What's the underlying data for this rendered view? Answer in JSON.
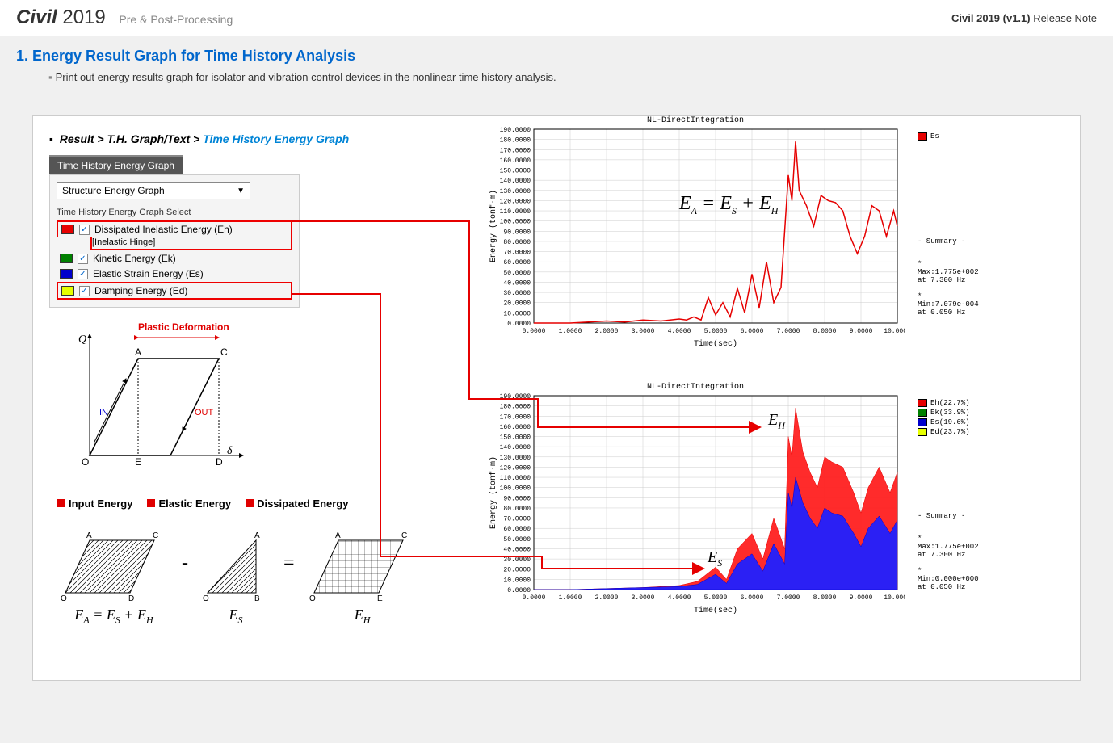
{
  "header": {
    "product_bold": "Civil",
    "product_year": "2019",
    "subtitle": "Pre & Post-Processing",
    "right_bold": "Civil 2019 (v1.1)",
    "right_text": " Release Note"
  },
  "section": {
    "number": "1.",
    "title": "Energy Result Graph for Time History Analysis",
    "description": "Print out  energy results graph for isolator and vibration control devices in the nonlinear time history analysis."
  },
  "breadcrumb": {
    "a": "Result",
    "b": "T.H. Graph/Text",
    "c": "Time History Energy Graph",
    "sep": " > "
  },
  "props": {
    "tab": "Time History Energy Graph",
    "dropdown": "Structure Energy Graph",
    "group": "Time History Energy Graph Select",
    "items": [
      {
        "label": "Dissipated Inelastic Energy (Eh)",
        "sub": "[Inelastic Hinge]",
        "color": "#e60000",
        "highlight": true
      },
      {
        "label": "Kinetic Energy (Ek)",
        "sub": "",
        "color": "#008000",
        "highlight": false
      },
      {
        "label": "Elastic Strain Energy (Es)",
        "sub": "",
        "color": "#0000cc",
        "highlight": false
      },
      {
        "label": "Damping Energy (Ed)",
        "sub": "",
        "color": "#e6ff00",
        "highlight": true
      }
    ]
  },
  "diagram": {
    "plastic": "Plastic Deformation",
    "Q": "Q",
    "A": "A",
    "C": "C",
    "O": "O",
    "E": "E",
    "D": "D",
    "IN": "IN",
    "OUT": "OUT",
    "delta": "δ"
  },
  "energy_types": {
    "input": "Input Energy",
    "elastic": "Elastic Energy",
    "dissipated": "Dissipated Energy"
  },
  "equations": {
    "ea_eq": "E",
    "a_sub": "A",
    "eq": " = ",
    "es": "E",
    "s_sub": "S",
    "plus": " + ",
    "eh": "E",
    "h_sub": "H",
    "minus": "-",
    "equals": "="
  },
  "chart1": {
    "title": "NL-DirectIntegration",
    "xlabel": "Time(sec)",
    "ylabel": "Energy (tonf·m)",
    "ylim": [
      0,
      190
    ],
    "ytick_step": 10,
    "xlim": [
      0,
      10
    ],
    "xtick_step": 1,
    "background": "#ffffff",
    "grid_color": "#cccccc",
    "line_color": "#e60000",
    "line_width": 1.5,
    "data_x": [
      0,
      0.5,
      1,
      1.5,
      2,
      2.5,
      3,
      3.5,
      4,
      4.2,
      4.4,
      4.6,
      4.8,
      5,
      5.2,
      5.4,
      5.6,
      5.8,
      6,
      6.2,
      6.4,
      6.6,
      6.8,
      7,
      7.1,
      7.2,
      7.3,
      7.5,
      7.7,
      7.9,
      8.1,
      8.3,
      8.5,
      8.7,
      8.9,
      9.1,
      9.3,
      9.5,
      9.7,
      9.9,
      10
    ],
    "data_y": [
      0,
      0,
      0,
      1,
      2,
      1,
      3,
      2,
      4,
      3,
      6,
      3,
      25,
      8,
      20,
      6,
      34,
      10,
      48,
      15,
      60,
      20,
      35,
      145,
      120,
      178,
      130,
      115,
      95,
      125,
      120,
      118,
      110,
      85,
      68,
      85,
      115,
      110,
      85,
      110,
      95
    ],
    "legend": [
      {
        "label": "Es",
        "color": "#e60000"
      }
    ],
    "summary_title": "- Summary -",
    "summary_lines": [
      "*",
      "Max:1.775e+002",
      "at  7.300 Hz",
      "",
      "*",
      "Min:7.079e-004",
      "at  0.050 Hz"
    ]
  },
  "chart2": {
    "title": "NL-DirectIntegration",
    "xlabel": "Time(sec)",
    "ylabel": "Energy (tonf·m)",
    "ylim": [
      0,
      190
    ],
    "ytick_step": 10,
    "xlim": [
      0,
      10
    ],
    "xtick_step": 1,
    "background": "#ffffff",
    "grid_color": "#cccccc",
    "series": [
      {
        "name": "Eh",
        "color": "#e60000",
        "fill": "#ff2020",
        "x": [
          0,
          1,
          2,
          3,
          4,
          4.5,
          5,
          5.3,
          5.6,
          6,
          6.3,
          6.6,
          6.9,
          7,
          7.1,
          7.2,
          7.4,
          7.6,
          7.8,
          8,
          8.2,
          8.5,
          8.8,
          9,
          9.2,
          9.5,
          9.8,
          10
        ],
        "y": [
          0,
          0,
          1,
          2,
          4,
          8,
          22,
          10,
          40,
          55,
          30,
          70,
          40,
          150,
          130,
          178,
          135,
          115,
          100,
          130,
          125,
          120,
          95,
          75,
          100,
          120,
          95,
          115
        ]
      },
      {
        "name": "Es",
        "color": "#0000cc",
        "fill": "#2020ff",
        "x": [
          0,
          1,
          2,
          3,
          4,
          4.5,
          5,
          5.3,
          5.6,
          6,
          6.3,
          6.6,
          6.9,
          7,
          7.1,
          7.2,
          7.4,
          7.6,
          7.8,
          8,
          8.2,
          8.5,
          8.8,
          9,
          9.2,
          9.5,
          9.8,
          10
        ],
        "y": [
          0,
          0,
          1,
          2,
          3,
          5,
          15,
          6,
          25,
          35,
          18,
          45,
          25,
          95,
          80,
          110,
          85,
          70,
          60,
          80,
          75,
          72,
          55,
          42,
          60,
          72,
          55,
          68
        ]
      }
    ],
    "legend": [
      {
        "label": "Eh(22.7%)",
        "color": "#e60000"
      },
      {
        "label": "Ek(33.9%)",
        "color": "#008000"
      },
      {
        "label": "Es(19.6%)",
        "color": "#0000cc"
      },
      {
        "label": "Ed(23.7%)",
        "color": "#e6ff00"
      }
    ],
    "summary_title": "- Summary -",
    "summary_lines": [
      "*",
      "Max:1.775e+002",
      "at  7.300 Hz",
      "",
      "*",
      "Min:0.000e+000",
      "at  0.050 Hz"
    ],
    "label_eh": "E",
    "label_eh_sub": "H",
    "label_es": "E",
    "label_es_sub": "S"
  }
}
